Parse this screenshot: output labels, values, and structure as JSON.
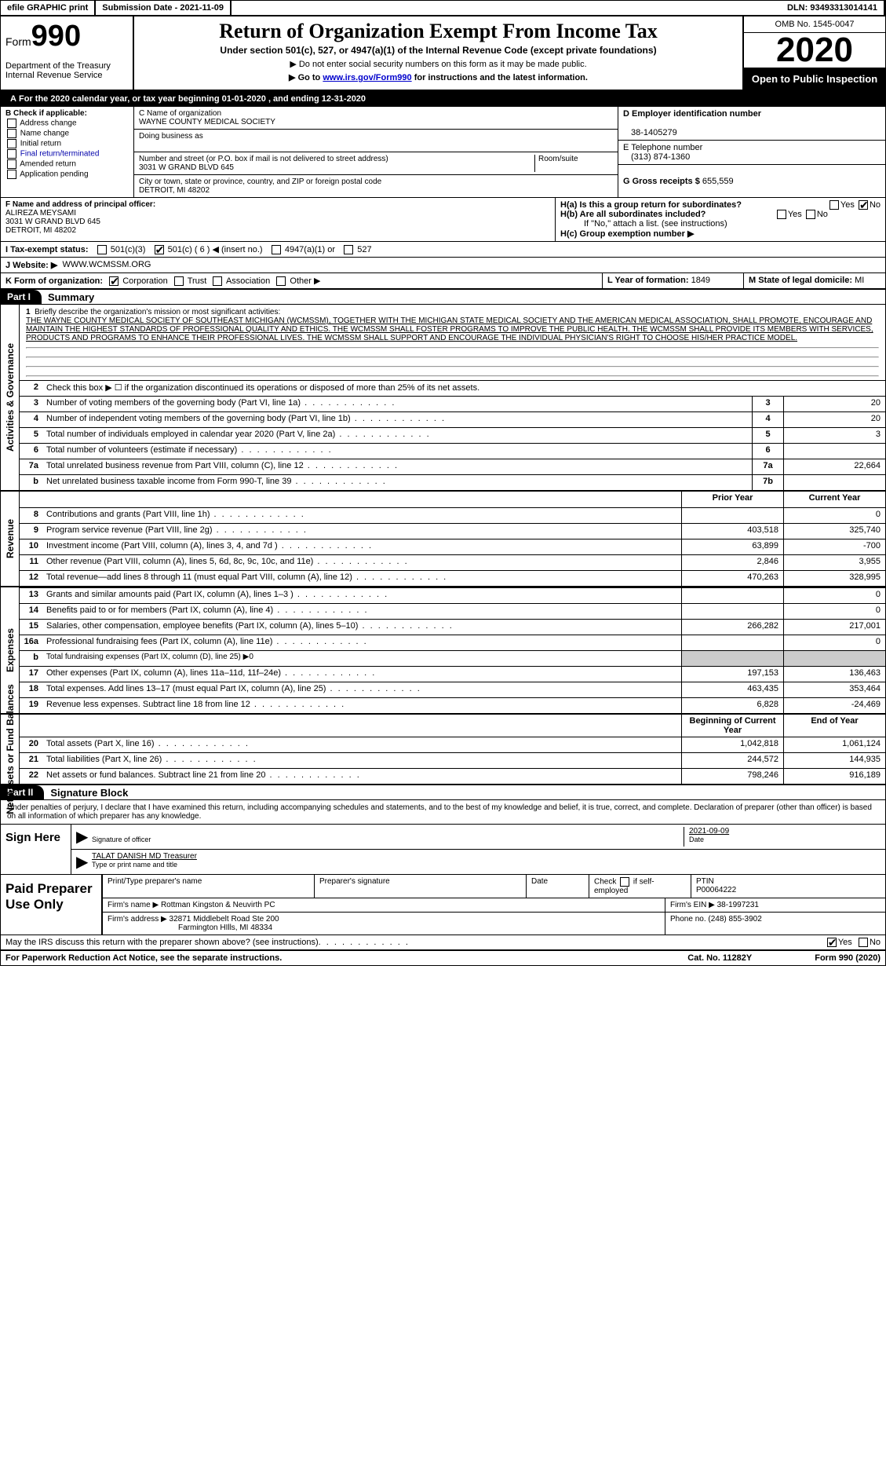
{
  "topbar": {
    "efile": "efile GRAPHIC print",
    "submission_label": "Submission Date - ",
    "submission_date": "2021-11-09",
    "dln_label": "DLN: ",
    "dln": "93493313014141"
  },
  "header": {
    "form_label": "Form",
    "form_number": "990",
    "dept": "Department of the Treasury\nInternal Revenue Service",
    "title": "Return of Organization Exempt From Income Tax",
    "subtitle": "Under section 501(c), 527, or 4947(a)(1) of the Internal Revenue Code (except private foundations)",
    "note1": "▶ Do not enter social security numbers on this form as it may be made public.",
    "note2_pre": "▶ Go to ",
    "note2_link": "www.irs.gov/Form990",
    "note2_post": " for instructions and the latest information.",
    "omb": "OMB No. 1545-0047",
    "year": "2020",
    "inspection": "Open to Public Inspection"
  },
  "row_a": "For the 2020 calendar year, or tax year beginning 01-01-2020   , and ending 12-31-2020",
  "section_b": {
    "header": "B Check if applicable:",
    "items": [
      "Address change",
      "Name change",
      "Initial return",
      "Final return/terminated",
      "Amended return",
      "Application pending"
    ]
  },
  "section_c": {
    "name_label": "C Name of organization",
    "name": "WAYNE COUNTY MEDICAL SOCIETY",
    "dba_label": "Doing business as",
    "dba": "",
    "street_label": "Number and street (or P.O. box if mail is not delivered to street address)",
    "room_label": "Room/suite",
    "street": "3031 W GRAND BLVD 645",
    "city_label": "City or town, state or province, country, and ZIP or foreign postal code",
    "city": "DETROIT, MI  48202"
  },
  "section_d": {
    "label": "D Employer identification number",
    "value": "38-1405279"
  },
  "section_e": {
    "label": "E Telephone number",
    "value": "(313) 874-1360"
  },
  "section_g": {
    "label": "G Gross receipts $",
    "value": "655,559"
  },
  "section_f": {
    "label": "F  Name and address of principal officer:",
    "name": "ALIREZA MEYSAMI",
    "addr1": "3031 W GRAND BLVD 645",
    "addr2": "DETROIT, MI  48202"
  },
  "section_h": {
    "ha": "H(a)  Is this a group return for subordinates?",
    "ha_yes": "Yes",
    "ha_no": "No",
    "hb": "H(b)  Are all subordinates included?",
    "hb_yes": "Yes",
    "hb_no": "No",
    "hb_note": "If \"No,\" attach a list. (see instructions)",
    "hc": "H(c)  Group exemption number ▶"
  },
  "row_i": {
    "label": "I   Tax-exempt status:",
    "opt1": "501(c)(3)",
    "opt2": "501(c) ( 6 ) ◀ (insert no.)",
    "opt3": "4947(a)(1) or",
    "opt4": "527"
  },
  "row_j": {
    "label": "J   Website: ▶",
    "value": "WWW.WCMSSM.ORG"
  },
  "row_k": {
    "label": "K Form of organization:",
    "opts": [
      "Corporation",
      "Trust",
      "Association",
      "Other ▶"
    ],
    "l_label": "L Year of formation:",
    "l_value": "1849",
    "m_label": "M State of legal domicile:",
    "m_value": "MI"
  },
  "part1": {
    "tab": "Part I",
    "title": "Summary"
  },
  "mission": {
    "num": "1",
    "label": "Briefly describe the organization's mission or most significant activities:",
    "text": "THE WAYNE COUNTY MEDICAL SOCIETY OF SOUTHEAST MICHIGAN (WCMSSM), TOGETHER WITH THE MICHIGAN STATE MEDICAL SOCIETY AND THE AMERICAN MEDICAL ASSOCIATION, SHALL PROMOTE, ENCOURAGE AND MAINTAIN THE HIGHEST STANDARDS OF PROFESSIONAL QUALITY AND ETHICS. THE WCMSSM SHALL FOSTER PROGRAMS TO IMPROVE THE PUBLIC HEALTH. THE WCMSSM SHALL PROVIDE ITS MEMBERS WITH SERVICES, PRODUCTS AND PROGRAMS TO ENHANCE THEIR PROFESSIONAL LIVES. THE WCMSSM SHALL SUPPORT AND ENCOURAGE THE INDIVIDUAL PHYSICIAN'S RIGHT TO CHOOSE HIS/HER PRACTICE MODEL."
  },
  "vtabs": {
    "activities": "Activities & Governance",
    "revenue": "Revenue",
    "expenses": "Expenses",
    "netassets": "Net Assets or Fund Balances"
  },
  "lines_gov": [
    {
      "num": "2",
      "label": "Check this box ▶ ☐ if the organization discontinued its operations or disposed of more than 25% of its net assets.",
      "single": true
    },
    {
      "num": "3",
      "label": "Number of voting members of the governing body (Part VI, line 1a)",
      "boxnum": "3",
      "val": "20"
    },
    {
      "num": "4",
      "label": "Number of independent voting members of the governing body (Part VI, line 1b)",
      "boxnum": "4",
      "val": "20"
    },
    {
      "num": "5",
      "label": "Total number of individuals employed in calendar year 2020 (Part V, line 2a)",
      "boxnum": "5",
      "val": "3"
    },
    {
      "num": "6",
      "label": "Total number of volunteers (estimate if necessary)",
      "boxnum": "6",
      "val": ""
    },
    {
      "num": "7a",
      "label": "Total unrelated business revenue from Part VIII, column (C), line 12",
      "boxnum": "7a",
      "val": "22,664"
    },
    {
      "num": "b",
      "label": "Net unrelated business taxable income from Form 990-T, line 39",
      "boxnum": "7b",
      "val": ""
    }
  ],
  "col_headers": {
    "prior": "Prior Year",
    "current": "Current Year",
    "begin": "Beginning of Current Year",
    "end": "End of Year"
  },
  "lines_rev": [
    {
      "num": "8",
      "label": "Contributions and grants (Part VIII, line 1h)",
      "prior": "",
      "current": "0"
    },
    {
      "num": "9",
      "label": "Program service revenue (Part VIII, line 2g)",
      "prior": "403,518",
      "current": "325,740"
    },
    {
      "num": "10",
      "label": "Investment income (Part VIII, column (A), lines 3, 4, and 7d )",
      "prior": "63,899",
      "current": "-700"
    },
    {
      "num": "11",
      "label": "Other revenue (Part VIII, column (A), lines 5, 6d, 8c, 9c, 10c, and 11e)",
      "prior": "2,846",
      "current": "3,955"
    },
    {
      "num": "12",
      "label": "Total revenue—add lines 8 through 11 (must equal Part VIII, column (A), line 12)",
      "prior": "470,263",
      "current": "328,995"
    }
  ],
  "lines_exp": [
    {
      "num": "13",
      "label": "Grants and similar amounts paid (Part IX, column (A), lines 1–3 )",
      "prior": "",
      "current": "0"
    },
    {
      "num": "14",
      "label": "Benefits paid to or for members (Part IX, column (A), line 4)",
      "prior": "",
      "current": "0"
    },
    {
      "num": "15",
      "label": "Salaries, other compensation, employee benefits (Part IX, column (A), lines 5–10)",
      "prior": "266,282",
      "current": "217,001"
    },
    {
      "num": "16a",
      "label": "Professional fundraising fees (Part IX, column (A), line 11e)",
      "prior": "",
      "current": "0"
    },
    {
      "num": "b",
      "label": "Total fundraising expenses (Part IX, column (D), line 25) ▶0",
      "shaded": true
    },
    {
      "num": "17",
      "label": "Other expenses (Part IX, column (A), lines 11a–11d, 11f–24e)",
      "prior": "197,153",
      "current": "136,463"
    },
    {
      "num": "18",
      "label": "Total expenses. Add lines 13–17 (must equal Part IX, column (A), line 25)",
      "prior": "463,435",
      "current": "353,464"
    },
    {
      "num": "19",
      "label": "Revenue less expenses. Subtract line 18 from line 12",
      "prior": "6,828",
      "current": "-24,469"
    }
  ],
  "lines_net": [
    {
      "num": "20",
      "label": "Total assets (Part X, line 16)",
      "prior": "1,042,818",
      "current": "1,061,124"
    },
    {
      "num": "21",
      "label": "Total liabilities (Part X, line 26)",
      "prior": "244,572",
      "current": "144,935"
    },
    {
      "num": "22",
      "label": "Net assets or fund balances. Subtract line 21 from line 20",
      "prior": "798,246",
      "current": "916,189"
    }
  ],
  "part2": {
    "tab": "Part II",
    "title": "Signature Block"
  },
  "sig": {
    "declaration": "Under penalties of perjury, I declare that I have examined this return, including accompanying schedules and statements, and to the best of my knowledge and belief, it is true, correct, and complete. Declaration of preparer (other than officer) is based on all information of which preparer has any knowledge.",
    "sign_here": "Sign Here",
    "officer_sig_label": "Signature of officer",
    "date_label": "Date",
    "date": "2021-09-09",
    "officer_name": "TALAT DANISH MD  Treasurer",
    "officer_name_label": "Type or print name and title"
  },
  "prep": {
    "label": "Paid Preparer Use Only",
    "h1": "Print/Type preparer's name",
    "h2": "Preparer's signature",
    "h3": "Date",
    "h4_pre": "Check",
    "h4_post": "if self-employed",
    "ptin_label": "PTIN",
    "ptin": "P00064222",
    "firm_name_label": "Firm's name   ▶",
    "firm_name": "Rottman Kingston & Neuvirth PC",
    "firm_ein_label": "Firm's EIN ▶",
    "firm_ein": "38-1997231",
    "firm_addr_label": "Firm's address ▶",
    "firm_addr1": "32871 Middlebelt Road Ste 200",
    "firm_addr2": "Farmington HIlls, MI  48334",
    "phone_label": "Phone no.",
    "phone": "(248) 855-3902"
  },
  "discuss": {
    "label": "May the IRS discuss this return with the preparer shown above? (see instructions)",
    "yes": "Yes",
    "no": "No"
  },
  "footer": {
    "left": "For Paperwork Reduction Act Notice, see the separate instructions.",
    "mid": "Cat. No. 11282Y",
    "right": "Form 990 (2020)"
  }
}
